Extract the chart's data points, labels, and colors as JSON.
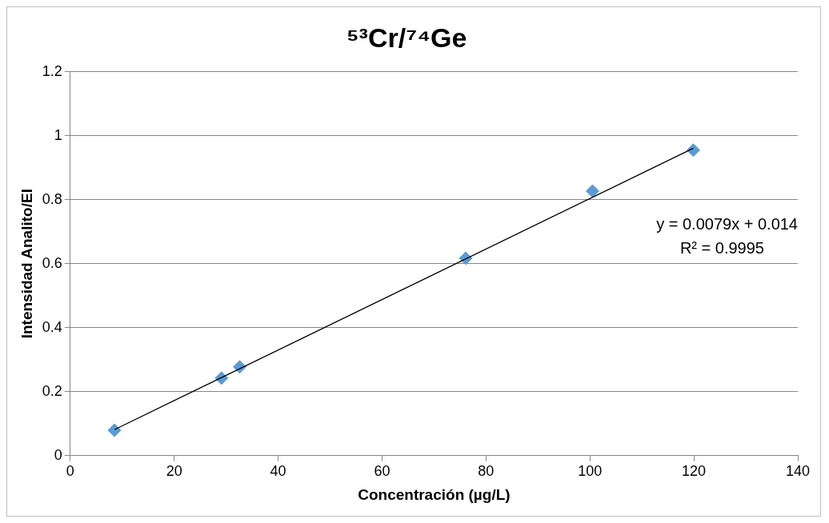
{
  "chart_data": {
    "type": "scatter",
    "title": "⁵³Cr/⁷⁴Ge",
    "xlabel": "Concentración (µg/L)",
    "ylabel": "Intensidad Analito/EI",
    "series": [
      {
        "type": "scatter",
        "color": "#5b9bd5",
        "marker": "diamond",
        "x": [
          8.5,
          29.1,
          32.6,
          76.1,
          100.5,
          119.9
        ],
        "values": [
          0.079,
          0.242,
          0.277,
          0.617,
          0.827,
          0.955
        ]
      },
      {
        "type": "line",
        "color": "#000000",
        "marker": "none",
        "x": [
          8.5,
          119.9
        ],
        "values": [
          0.081,
          0.961
        ]
      }
    ],
    "xlim": [
      0,
      140
    ],
    "xticks": [
      0,
      20,
      40,
      60,
      80,
      100,
      120,
      140
    ],
    "ylim": [
      0,
      1.2
    ],
    "yticks": [
      0,
      0.2,
      0.4,
      0.6,
      0.8,
      1,
      1.2
    ],
    "grid": "y",
    "legend": false,
    "annotations": [
      "y = 0.0079x + 0.014",
      "R² = 0.9995"
    ]
  }
}
